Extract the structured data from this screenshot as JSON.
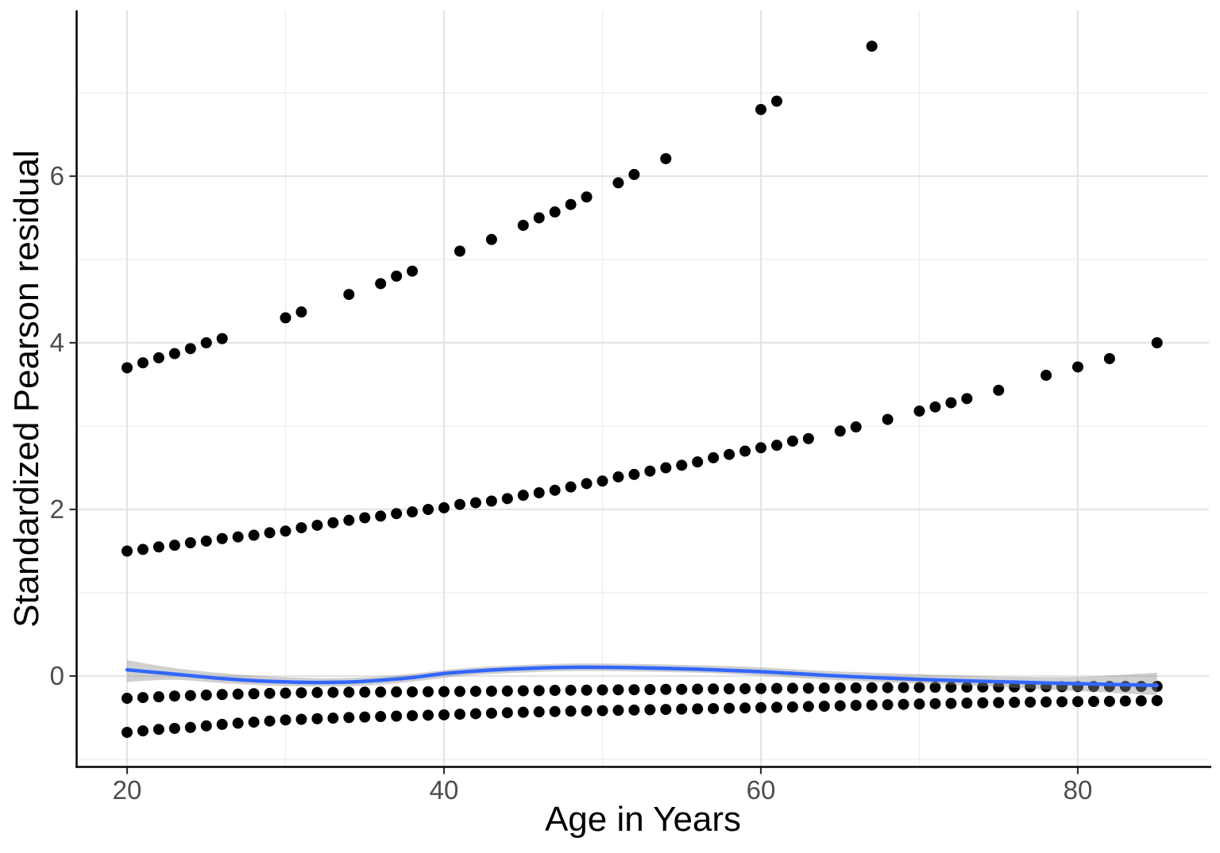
{
  "axes": {
    "x": {
      "label": "Age in Years",
      "tick_labels": [
        "20",
        "40",
        "60",
        "80"
      ],
      "tick_values": [
        20,
        40,
        60,
        80
      ],
      "minor_tick_values": [
        30,
        50,
        70
      ],
      "range": [
        16.8,
        88.2
      ]
    },
    "y": {
      "label": "Standardized Pearson residual",
      "tick_labels": [
        "0",
        "2",
        "4",
        "6"
      ],
      "tick_values": [
        0,
        2,
        4,
        6
      ],
      "minor_tick_values": [
        -1,
        1,
        3,
        5,
        7
      ],
      "range": [
        -1.09,
        7.99
      ]
    }
  },
  "colors": {
    "point": "#000000",
    "smooth_line": "#3366FF",
    "ribbon": "#8F8F8F",
    "grid_major": "#E4E4E4",
    "grid_minor": "#EFEFEF",
    "axis_line": "#000000",
    "tick_mark": "#333333",
    "tick_text": "#4D4D4D"
  },
  "chart_data": {
    "type": "scatter",
    "title": "",
    "xlabel": "Age in Years",
    "ylabel": "Standardized Pearson residual",
    "xlim": [
      16.8,
      88.2
    ],
    "ylim": [
      -1.09,
      7.99
    ],
    "grid": "major+minor",
    "legend": "none",
    "band_x_ages": [
      20,
      21,
      22,
      23,
      24,
      25,
      26,
      27,
      28,
      29,
      30,
      31,
      32,
      33,
      34,
      35,
      36,
      37,
      38,
      39,
      40,
      41,
      42,
      43,
      44,
      45,
      46,
      47,
      48,
      49,
      50,
      51,
      52,
      53,
      54,
      55,
      56,
      57,
      58,
      59,
      60,
      61,
      62,
      63,
      64,
      65,
      66,
      67,
      68,
      69,
      70,
      71,
      72,
      73,
      74,
      75,
      76,
      77,
      78,
      79,
      80,
      81,
      82,
      83,
      84,
      85
    ],
    "series": [
      {
        "name": "positive-residuals-upper-curve",
        "kind": "scatter",
        "points": [
          [
            20,
            3.7
          ],
          [
            21,
            3.76
          ],
          [
            22,
            3.82
          ],
          [
            23,
            3.87
          ],
          [
            24,
            3.93
          ],
          [
            25,
            4.0
          ],
          [
            26,
            4.05
          ],
          [
            30,
            4.3
          ],
          [
            31,
            4.37
          ],
          [
            34,
            4.58
          ],
          [
            36,
            4.71
          ],
          [
            37,
            4.8
          ],
          [
            38,
            4.86
          ],
          [
            41,
            5.1
          ],
          [
            43,
            5.24
          ],
          [
            45,
            5.41
          ],
          [
            46,
            5.5
          ],
          [
            47,
            5.57
          ],
          [
            48,
            5.66
          ],
          [
            49,
            5.75
          ],
          [
            51,
            5.92
          ],
          [
            52,
            6.02
          ],
          [
            54,
            6.21
          ],
          [
            60,
            6.8
          ],
          [
            61,
            6.9
          ],
          [
            67,
            7.56
          ]
        ]
      },
      {
        "name": "positive-residuals-lower-curve",
        "kind": "scatter",
        "points": [
          [
            20,
            1.5
          ],
          [
            21,
            1.52
          ],
          [
            22,
            1.55
          ],
          [
            23,
            1.57
          ],
          [
            24,
            1.6
          ],
          [
            25,
            1.62
          ],
          [
            26,
            1.65
          ],
          [
            27,
            1.67
          ],
          [
            28,
            1.69
          ],
          [
            29,
            1.72
          ],
          [
            30,
            1.74
          ],
          [
            31,
            1.78
          ],
          [
            32,
            1.81
          ],
          [
            33,
            1.84
          ],
          [
            34,
            1.87
          ],
          [
            35,
            1.9
          ],
          [
            36,
            1.92
          ],
          [
            37,
            1.95
          ],
          [
            38,
            1.97
          ],
          [
            39,
            2.0
          ],
          [
            40,
            2.02
          ],
          [
            41,
            2.06
          ],
          [
            42,
            2.08
          ],
          [
            43,
            2.1
          ],
          [
            44,
            2.13
          ],
          [
            45,
            2.17
          ],
          [
            46,
            2.2
          ],
          [
            47,
            2.23
          ],
          [
            48,
            2.27
          ],
          [
            49,
            2.31
          ],
          [
            50,
            2.34
          ],
          [
            51,
            2.39
          ],
          [
            52,
            2.42
          ],
          [
            53,
            2.46
          ],
          [
            54,
            2.5
          ],
          [
            55,
            2.53
          ],
          [
            56,
            2.57
          ],
          [
            57,
            2.62
          ],
          [
            58,
            2.66
          ],
          [
            59,
            2.7
          ],
          [
            60,
            2.74
          ],
          [
            61,
            2.77
          ],
          [
            62,
            2.82
          ],
          [
            63,
            2.85
          ],
          [
            65,
            2.94
          ],
          [
            66,
            2.99
          ],
          [
            68,
            3.08
          ],
          [
            70,
            3.18
          ],
          [
            71,
            3.23
          ],
          [
            72,
            3.28
          ],
          [
            73,
            3.33
          ],
          [
            75,
            3.43
          ],
          [
            78,
            3.61
          ],
          [
            80,
            3.71
          ],
          [
            82,
            3.81
          ],
          [
            85,
            4.0
          ]
        ]
      },
      {
        "name": "negative-residuals-upper-band",
        "kind": "scatter-band",
        "values": [
          -0.267,
          -0.258,
          -0.249,
          -0.24,
          -0.234,
          -0.228,
          -0.222,
          -0.217,
          -0.212,
          -0.208,
          -0.205,
          -0.201,
          -0.198,
          -0.196,
          -0.194,
          -0.193,
          -0.192,
          -0.191,
          -0.19,
          -0.188,
          -0.187,
          -0.185,
          -0.183,
          -0.182,
          -0.18,
          -0.177,
          -0.175,
          -0.172,
          -0.17,
          -0.169,
          -0.167,
          -0.165,
          -0.164,
          -0.162,
          -0.16,
          -0.159,
          -0.157,
          -0.155,
          -0.154,
          -0.152,
          -0.15,
          -0.149,
          -0.147,
          -0.146,
          -0.144,
          -0.143,
          -0.142,
          -0.14,
          -0.139,
          -0.137,
          -0.136,
          -0.135,
          -0.134,
          -0.133,
          -0.132,
          -0.131,
          -0.13,
          -0.129,
          -0.128,
          -0.128,
          -0.127,
          -0.126,
          -0.126,
          -0.125,
          -0.125,
          -0.124
        ]
      },
      {
        "name": "negative-residuals-lower-band",
        "kind": "scatter-band",
        "values": [
          -0.676,
          -0.658,
          -0.64,
          -0.628,
          -0.617,
          -0.598,
          -0.58,
          -0.566,
          -0.553,
          -0.54,
          -0.527,
          -0.519,
          -0.512,
          -0.505,
          -0.498,
          -0.492,
          -0.486,
          -0.481,
          -0.476,
          -0.47,
          -0.465,
          -0.458,
          -0.452,
          -0.446,
          -0.44,
          -0.435,
          -0.43,
          -0.426,
          -0.422,
          -0.418,
          -0.415,
          -0.411,
          -0.408,
          -0.404,
          -0.401,
          -0.397,
          -0.394,
          -0.39,
          -0.387,
          -0.383,
          -0.379,
          -0.375,
          -0.371,
          -0.366,
          -0.362,
          -0.357,
          -0.352,
          -0.348,
          -0.344,
          -0.34,
          -0.336,
          -0.332,
          -0.329,
          -0.325,
          -0.322,
          -0.319,
          -0.316,
          -0.313,
          -0.311,
          -0.309,
          -0.307,
          -0.305,
          -0.303,
          -0.3,
          -0.298,
          -0.295
        ]
      },
      {
        "name": "loess-smooth-line",
        "kind": "line",
        "color": "#3366FF",
        "points": [
          [
            20,
            0.075
          ],
          [
            22,
            0.04
          ],
          [
            24,
            0.005
          ],
          [
            26,
            -0.03
          ],
          [
            28,
            -0.055
          ],
          [
            30,
            -0.07
          ],
          [
            32,
            -0.077
          ],
          [
            34,
            -0.072
          ],
          [
            36,
            -0.05
          ],
          [
            38,
            -0.018
          ],
          [
            40,
            0.03
          ],
          [
            42,
            0.06
          ],
          [
            44,
            0.082
          ],
          [
            46,
            0.097
          ],
          [
            48,
            0.105
          ],
          [
            50,
            0.105
          ],
          [
            52,
            0.1
          ],
          [
            54,
            0.092
          ],
          [
            56,
            0.082
          ],
          [
            58,
            0.068
          ],
          [
            60,
            0.052
          ],
          [
            62,
            0.032
          ],
          [
            64,
            0.01
          ],
          [
            66,
            -0.01
          ],
          [
            68,
            -0.025
          ],
          [
            70,
            -0.04
          ],
          [
            72,
            -0.052
          ],
          [
            74,
            -0.063
          ],
          [
            76,
            -0.073
          ],
          [
            78,
            -0.083
          ],
          [
            80,
            -0.092
          ],
          [
            82,
            -0.1
          ],
          [
            85,
            -0.112
          ]
        ]
      },
      {
        "name": "loess-confidence-ribbon",
        "kind": "ribbon",
        "points_lo_hi": [
          [
            20,
            -0.07,
            0.19
          ],
          [
            23,
            -0.045,
            0.095
          ],
          [
            26,
            -0.085,
            0.035
          ],
          [
            29,
            -0.115,
            -0.005
          ],
          [
            32,
            -0.125,
            -0.025
          ],
          [
            35,
            -0.115,
            -0.015
          ],
          [
            38,
            -0.068,
            0.028
          ],
          [
            41,
            0.0,
            0.09
          ],
          [
            44,
            0.035,
            0.125
          ],
          [
            48,
            0.06,
            0.15
          ],
          [
            52,
            0.055,
            0.145
          ],
          [
            56,
            0.04,
            0.13
          ],
          [
            60,
            0.005,
            0.105
          ],
          [
            64,
            -0.042,
            0.062
          ],
          [
            68,
            -0.075,
            0.035
          ],
          [
            72,
            -0.103,
            0.013
          ],
          [
            76,
            -0.14,
            -0.01
          ],
          [
            80,
            -0.18,
            -0.01
          ],
          [
            85,
            -0.23,
            0.04
          ]
        ]
      }
    ]
  }
}
